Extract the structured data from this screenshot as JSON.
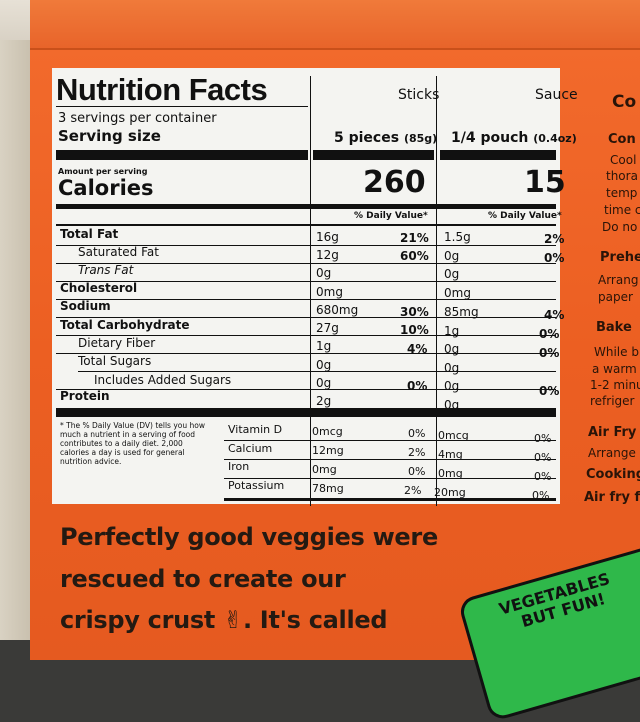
{
  "label": {
    "title": "Nutrition Facts",
    "col_sticks": "Sticks",
    "col_sauce": "Sauce",
    "servings": "3 servings per container",
    "serving_size_label": "Serving size",
    "sticks_serving": "5 pieces",
    "sticks_serving_g": "(85g)",
    "sauce_serving": "1/4 pouch",
    "sauce_serving_oz": "(0.4oz)",
    "amount_per_serving": "Amount per serving",
    "calories_label": "Calories",
    "sticks_calories": "260",
    "sauce_calories": "15",
    "dv_head": "% Daily Value*",
    "rows": [
      {
        "label": "Total Fat",
        "sticks": "16g",
        "sticks_pct": "21%",
        "sauce": "1.5g",
        "sauce_pct": "2%"
      },
      {
        "label": "Saturated Fat",
        "sticks": "12g",
        "sticks_pct": "60%",
        "sauce": "0g",
        "sauce_pct": "0%"
      },
      {
        "label": "Trans Fat",
        "sticks": "0g",
        "sticks_pct": "",
        "sauce": "0g",
        "sauce_pct": ""
      },
      {
        "label": "Cholesterol",
        "sticks": "0mg",
        "sticks_pct": "",
        "sauce": "0mg",
        "sauce_pct": ""
      },
      {
        "label": "Sodium",
        "sticks": "680mg",
        "sticks_pct": "30%",
        "sauce": "85mg",
        "sauce_pct": "4%"
      },
      {
        "label": "Total Carbohydrate",
        "sticks": "27g",
        "sticks_pct": "10%",
        "sauce": "1g",
        "sauce_pct": "0%"
      },
      {
        "label": "Dietary Fiber",
        "sticks": "1g",
        "sticks_pct": "4%",
        "sauce": "0g",
        "sauce_pct": "0%"
      },
      {
        "label": "Total Sugars",
        "sticks": "0g",
        "sticks_pct": "",
        "sauce": "0g",
        "sauce_pct": ""
      },
      {
        "label": "Includes Added Sugars",
        "sticks": "0g",
        "sticks_pct": "0%",
        "sauce": "0g",
        "sauce_pct": "0%"
      },
      {
        "label": "Protein",
        "sticks": "2g",
        "sticks_pct": "",
        "sauce": "0g",
        "sauce_pct": ""
      }
    ],
    "vitamins": [
      {
        "label": "Vitamin D",
        "sticks": "0mcg",
        "sticks_pct": "0%",
        "sauce": "0mcg",
        "sauce_pct": "0%"
      },
      {
        "label": "Calcium",
        "sticks": "12mg",
        "sticks_pct": "2%",
        "sauce": "4mg",
        "sauce_pct": "0%"
      },
      {
        "label": "Iron",
        "sticks": "0mg",
        "sticks_pct": "0%",
        "sauce": "0mg",
        "sauce_pct": "0%"
      },
      {
        "label": "Potassium",
        "sticks": "78mg",
        "sticks_pct": "2%",
        "sauce": "20mg",
        "sauce_pct": "0%"
      }
    ],
    "footnote": "* The % Daily Value (DV) tells you how much a nutrient in a serving of food contributes to a daily diet. 2,000 calories a day is used for general nutrition advice."
  },
  "tagline": {
    "line1": "Perfectly good veggies were",
    "line2": "rescued to create our",
    "line3": "crispy crust",
    "line3_end": ". It's called"
  },
  "side": {
    "s1": "Co",
    "s2": "Con",
    "s3": "Cool",
    "s4": "thora",
    "s5": "temp",
    "s6": "time c",
    "s7": "Do no",
    "s8": "Prehe",
    "s9": "Arrang",
    "s10": "paper",
    "s11": "Bake",
    "s12": "While b",
    "s13": "a warm",
    "s14": "1-2 minu",
    "s15": "refriger",
    "s16": "Air Fry",
    "s17": "Arrange",
    "s18": "Cooking",
    "s19": "Air fry f"
  },
  "badge": {
    "line1": "VEGETABLES",
    "line2": "BUT FUN!"
  }
}
